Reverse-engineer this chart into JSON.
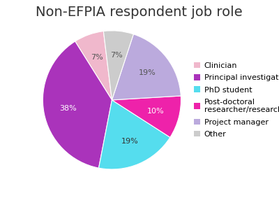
{
  "title": "Non-EFPIA respondent job role",
  "labels": [
    "Clinician",
    "Principal investigator",
    "PhD student",
    "Post-doctoral\nresearcher/researcher",
    "Project manager",
    "Other"
  ],
  "values": [
    7,
    38,
    19,
    10,
    19,
    7
  ],
  "colors": [
    "#f0b8cc",
    "#aa33bb",
    "#55ddee",
    "#ee22aa",
    "#bbaadd",
    "#cccccc"
  ],
  "legend_labels": [
    "Clinician",
    "Principal investigator",
    "PhD student",
    "Post-doctoral\nresearcher/researcher",
    "Project manager",
    "Other"
  ],
  "startangle": 97,
  "title_fontsize": 14,
  "legend_fontsize": 8,
  "pct_fontsize": 8,
  "background_color": "#ffffff",
  "pct_colors": [
    "#555555",
    "#ffffff",
    "#333333",
    "#ffffff",
    "#555555",
    "#555555"
  ]
}
